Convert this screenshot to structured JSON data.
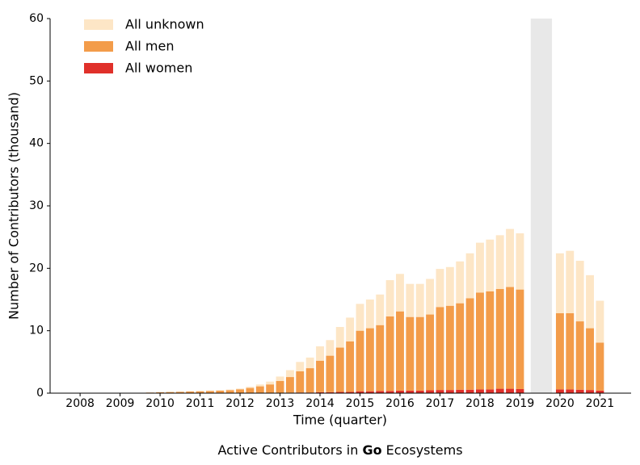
{
  "chart_data": {
    "type": "stacked_bar",
    "xlabel": "Time (quarter)",
    "ylabel": "Number of Contributors (thousand)",
    "caption_prefix": "Active Contributors in",
    "caption_bold": "Go",
    "caption_suffix": "Ecosystems",
    "x": [
      2008,
      2008.25,
      2008.5,
      2008.75,
      2009,
      2009.25,
      2009.5,
      2009.75,
      2010,
      2010.25,
      2010.5,
      2010.75,
      2011,
      2011.25,
      2011.5,
      2011.75,
      2012,
      2012.25,
      2012.5,
      2012.75,
      2013,
      2013.25,
      2013.5,
      2013.75,
      2014,
      2014.25,
      2014.5,
      2014.75,
      2015,
      2015.25,
      2015.5,
      2015.75,
      2016,
      2016.25,
      2016.5,
      2016.75,
      2017,
      2017.25,
      2017.5,
      2017.75,
      2018,
      2018.25,
      2018.5,
      2018.75,
      2019,
      2019.25,
      2019.5,
      2019.75,
      2020,
      2020.25,
      2020.5,
      2020.75,
      2021
    ],
    "series": [
      {
        "name": "All women",
        "color": "#e0302a",
        "values": [
          0,
          0,
          0,
          0,
          0,
          0,
          0,
          0,
          0,
          0,
          0,
          0,
          0,
          0,
          0,
          0,
          0.02,
          0.03,
          0.04,
          0.05,
          0.06,
          0.08,
          0.1,
          0.1,
          0.15,
          0.15,
          0.2,
          0.2,
          0.3,
          0.3,
          0.35,
          0.35,
          0.4,
          0.4,
          0.4,
          0.45,
          0.5,
          0.5,
          0.55,
          0.55,
          0.6,
          0.6,
          0.7,
          0.7,
          0.65,
          null,
          null,
          null,
          0.6,
          0.6,
          0.55,
          0.5,
          0.4
        ]
      },
      {
        "name": "All men",
        "color": "#f39c4a",
        "values": [
          0,
          0,
          0,
          0,
          0.05,
          0.05,
          0.05,
          0.1,
          0.15,
          0.18,
          0.22,
          0.27,
          0.3,
          0.35,
          0.4,
          0.48,
          0.6,
          0.8,
          1.05,
          1.35,
          1.9,
          2.5,
          3.4,
          3.9,
          5.05,
          5.85,
          7.1,
          8.1,
          9.7,
          10.1,
          10.55,
          11.95,
          12.7,
          11.8,
          11.8,
          12.15,
          13.3,
          13.5,
          13.85,
          14.65,
          15.5,
          15.7,
          16.0,
          16.3,
          15.95,
          null,
          null,
          null,
          12.2,
          12.2,
          10.95,
          9.9,
          7.7
        ]
      },
      {
        "name": "All unknown",
        "color": "#fde6c6",
        "values": [
          0,
          0,
          0,
          0,
          0,
          0,
          0,
          0.02,
          0.03,
          0.04,
          0.05,
          0.05,
          0.06,
          0.07,
          0.08,
          0.1,
          0.12,
          0.2,
          0.3,
          0.45,
          0.7,
          1.1,
          1.5,
          1.7,
          2.3,
          2.5,
          3.3,
          3.8,
          4.3,
          4.6,
          4.9,
          5.8,
          6.0,
          5.3,
          5.3,
          5.7,
          6.1,
          6.2,
          6.7,
          7.2,
          8.0,
          8.3,
          8.6,
          9.3,
          9.0,
          null,
          null,
          null,
          9.6,
          10.0,
          9.7,
          8.5,
          6.7
        ]
      }
    ],
    "shaded_span": [
      2019.27,
      2019.8
    ],
    "shade_color": "#e8e8e8",
    "xlim": [
      2007.25,
      2021.78
    ],
    "xticks": [
      2008,
      2009,
      2010,
      2011,
      2012,
      2013,
      2014,
      2015,
      2016,
      2017,
      2018,
      2019,
      2020,
      2021
    ],
    "ylim": [
      0,
      60
    ],
    "yticks": [
      0,
      10,
      20,
      30,
      40,
      50,
      60
    ],
    "legend": "upper left"
  }
}
